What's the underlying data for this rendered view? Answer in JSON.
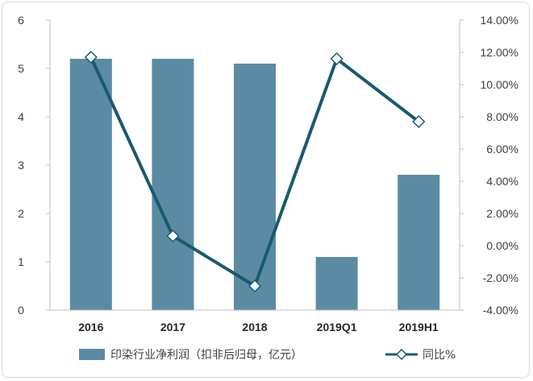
{
  "chart_data": {
    "type": "bar+line",
    "categories": [
      "2016",
      "2017",
      "2018",
      "2019Q1",
      "2019H1"
    ],
    "series": [
      {
        "name": "印染行业净利润（扣非后归母，亿元）",
        "type": "bar",
        "axis": "left",
        "values": [
          5.2,
          5.2,
          5.1,
          1.1,
          2.8
        ]
      },
      {
        "name": "同比%",
        "type": "line",
        "axis": "right",
        "values": [
          11.7,
          0.6,
          -2.5,
          11.6,
          7.7
        ]
      }
    ],
    "y_left": {
      "ticks": [
        "0",
        "1",
        "2",
        "3",
        "4",
        "5",
        "6"
      ],
      "range": [
        0,
        6
      ]
    },
    "y_right": {
      "ticks": [
        "-4.00%",
        "-2.00%",
        "0.00%",
        "2.00%",
        "4.00%",
        "6.00%",
        "8.00%",
        "10.00%",
        "12.00%",
        "14.00%"
      ],
      "range": [
        -4,
        14
      ]
    },
    "grid": false,
    "legend_position": "bottom",
    "colors": {
      "bar": "#5b8ba3",
      "line": "#1a5a6e",
      "marker_fill": "#ffffff"
    }
  }
}
